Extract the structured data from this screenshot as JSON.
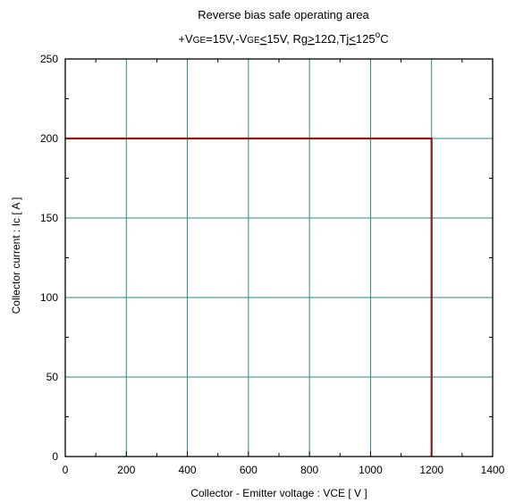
{
  "chart_data": {
    "type": "line",
    "title": "Reverse bias safe operating area",
    "subtitle": {
      "p1": "+V",
      "p2": "GE",
      "p3": "=15V,-V",
      "p4": "GE",
      "p5": "15V, Rg",
      "p6": "12Ω,Tj",
      "p7": "125",
      "p8": "o",
      "p9": "C"
    },
    "xlabel": "Collector - Emitter voltage  :  VCE  [ V ]",
    "ylabel": "Collector current  : Ic  [ A ]",
    "xlim": [
      0,
      1400
    ],
    "ylim": [
      0,
      250
    ],
    "xticks": [
      "0",
      "200",
      "400",
      "600",
      "800",
      "1000",
      "1200",
      "1400"
    ],
    "yticks": [
      "0",
      "50",
      "100",
      "150",
      "200",
      "250"
    ],
    "grid": true,
    "series": [
      {
        "x": [
          0,
          1200,
          1200
        ],
        "y": [
          200,
          200,
          0
        ],
        "color": "#8b1a1a"
      }
    ],
    "grid_color": "#2a8a8a"
  }
}
